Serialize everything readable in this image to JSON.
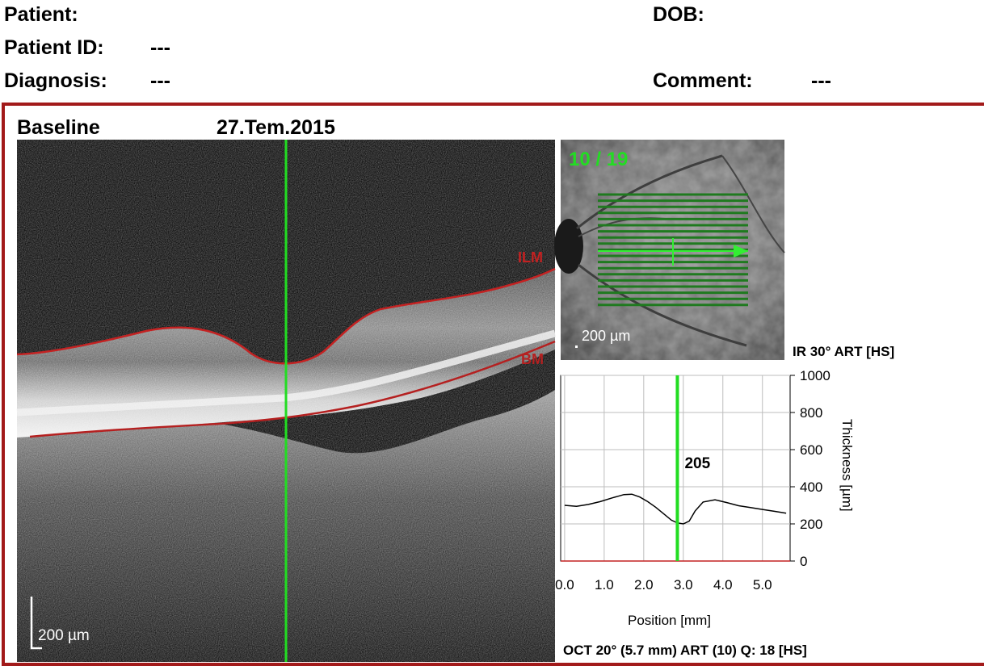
{
  "header": {
    "patient_label": "Patient:",
    "dob_label": "DOB:",
    "patient_id_label": "Patient ID:",
    "patient_id_value": "---",
    "diagnosis_label": "Diagnosis:",
    "diagnosis_value": "---",
    "comment_label": "Comment:",
    "comment_value": "---"
  },
  "scan": {
    "title": "Baseline",
    "date": "27.Tem.2015",
    "bscan_scale_label": "200 µm",
    "layer_labels": {
      "ilm": "ILM",
      "bm": "BM"
    },
    "colors": {
      "ilm": "#c42222",
      "bm": "#b52020",
      "cursor": "#22dd22",
      "frame": "#a21a1a"
    }
  },
  "fundus": {
    "slice_counter": "10 / 19",
    "scale_label": "200 µm",
    "label": "IR 30° ART [HS]"
  },
  "chart_data": {
    "type": "line",
    "xlabel": "Position [mm]",
    "ylabel": "Thickness [µm]",
    "xlim": [
      -0.1,
      5.7
    ],
    "ylim": [
      0,
      1000
    ],
    "x_ticks": [
      "0.0",
      "1.0",
      "2.0",
      "3.0",
      "4.0",
      "5.0"
    ],
    "y_ticks": [
      "0",
      "200",
      "400",
      "600",
      "800",
      "1000"
    ],
    "cursor_x": 2.85,
    "cursor_value": "205",
    "grid": true,
    "series": [
      {
        "x": [
          0.0,
          0.3,
          0.6,
          0.9,
          1.2,
          1.5,
          1.7,
          1.9,
          2.1,
          2.3,
          2.5,
          2.7,
          2.85,
          3.0,
          3.15,
          3.3,
          3.5,
          3.8,
          4.1,
          4.4,
          4.7,
          5.0,
          5.3,
          5.6
        ],
        "y": [
          300,
          295,
          305,
          320,
          340,
          358,
          360,
          345,
          320,
          290,
          255,
          220,
          205,
          200,
          215,
          270,
          318,
          330,
          315,
          298,
          288,
          278,
          268,
          258
        ]
      }
    ]
  },
  "footer": {
    "oct_info": "OCT 20° (5.7 mm) ART (10) Q: 18 [HS]"
  }
}
